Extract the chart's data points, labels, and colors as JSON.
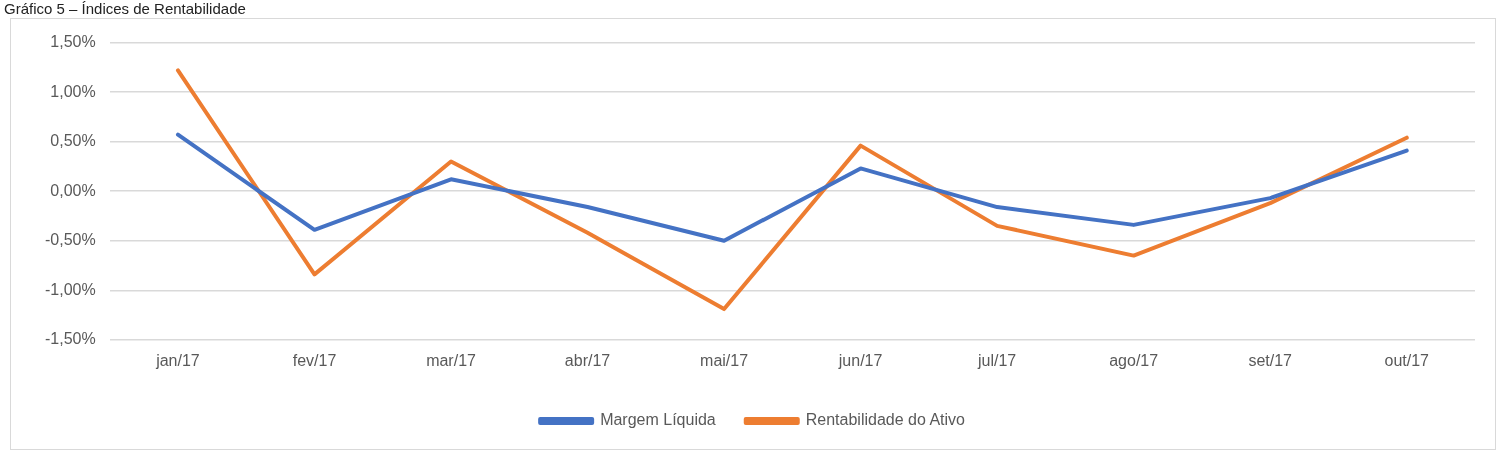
{
  "chart_data": {
    "type": "line",
    "title": "Gráfico 5 – Índices de Rentabilidade",
    "categories": [
      "jan/17",
      "fev/17",
      "mar/17",
      "abr/17",
      "mai/17",
      "jun/17",
      "jul/17",
      "ago/17",
      "set/17",
      "out/17"
    ],
    "series": [
      {
        "name": "Margem Líquida",
        "color": "#4472c4",
        "values": [
          0.57,
          -0.39,
          0.12,
          -0.16,
          -0.5,
          0.23,
          -0.16,
          -0.34,
          -0.07,
          0.41
        ]
      },
      {
        "name": "Rentabilidade do Ativo",
        "color": "#ed7d31",
        "values": [
          1.22,
          -0.84,
          0.3,
          -0.42,
          -1.19,
          0.46,
          -0.35,
          -0.65,
          -0.12,
          0.54
        ]
      }
    ],
    "ylim": [
      -1.5,
      1.5
    ],
    "yticks": [
      {
        "value": -1.5,
        "label": "-1,50%"
      },
      {
        "value": -1,
        "label": "-1,00%"
      },
      {
        "value": -0.5,
        "label": "-0,50%"
      },
      {
        "value": 0,
        "label": "0,00%"
      },
      {
        "value": 0.5,
        "label": "0,50%"
      },
      {
        "value": 1,
        "label": "1,00%"
      },
      {
        "value": 1.5,
        "label": "1,50%"
      }
    ],
    "grid": "y",
    "legend": "bottom",
    "marker": "none",
    "line_style": "solid"
  }
}
